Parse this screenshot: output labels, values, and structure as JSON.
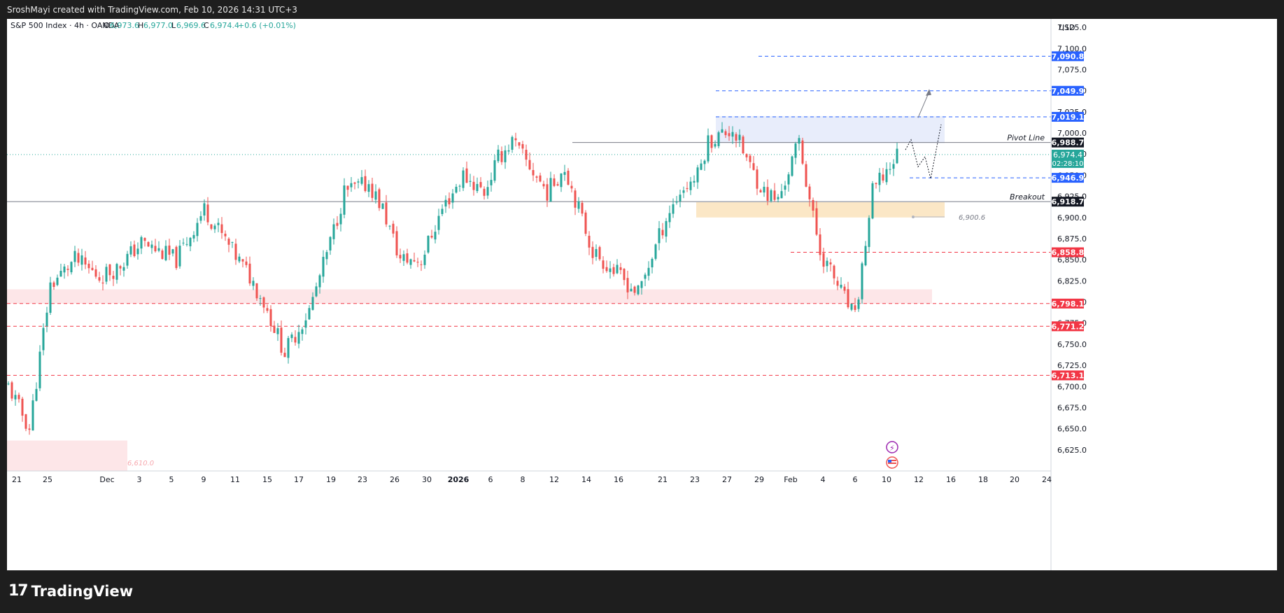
{
  "header": {
    "attribution": "SroshMayi created with TradingView.com, Feb 10, 2026 14:31 UTC+3"
  },
  "legend": {
    "symbol": "S&P 500 Index · 4h · OANDA",
    "open_label": "O",
    "open": "6,973.6",
    "high_label": "H",
    "high": "6,977.0",
    "low_label": "L",
    "low": "6,969.6",
    "close_label": "C",
    "close": "6,974.4",
    "change": "+0.6 (+0.01%)"
  },
  "footer": {
    "brand": "TradingView"
  },
  "colors": {
    "up": "#26a69a",
    "down": "#ef5350",
    "level_blue": "#2962ff",
    "level_red": "#f23645",
    "level_dark": "#131722",
    "zone_blue": "#e8edfb",
    "zone_orange": "#fbe7c6",
    "zone_red": "#fde6e8",
    "price_line": "#26a69a"
  },
  "chart_data": {
    "type": "candlestick",
    "timeframe": "4h",
    "currency": "USD",
    "ylim": [
      6600,
      7135
    ],
    "y_ticks": [
      "6,625.0",
      "6,650.0",
      "6,675.0",
      "6,700.0",
      "6,725.0",
      "6,750.0",
      "6,775.0",
      "6,800.0",
      "6,825.0",
      "6,850.0",
      "6,875.0",
      "6,900.0",
      "6,925.0",
      "6,950.0",
      "6,975.0",
      "7,000.0",
      "7,025.0",
      "7,050.0",
      "7,075.0",
      "7,100.0",
      "7,125.0"
    ],
    "x_ticks": [
      {
        "label": "21",
        "bold": false
      },
      {
        "label": "25",
        "bold": false
      },
      {
        "label": "Dec",
        "bold": false
      },
      {
        "label": "3",
        "bold": false
      },
      {
        "label": "5",
        "bold": false
      },
      {
        "label": "9",
        "bold": false
      },
      {
        "label": "11",
        "bold": false
      },
      {
        "label": "15",
        "bold": false
      },
      {
        "label": "17",
        "bold": false
      },
      {
        "label": "19",
        "bold": false
      },
      {
        "label": "23",
        "bold": false
      },
      {
        "label": "26",
        "bold": false
      },
      {
        "label": "30",
        "bold": false
      },
      {
        "label": "2026",
        "bold": true
      },
      {
        "label": "6",
        "bold": false
      },
      {
        "label": "8",
        "bold": false
      },
      {
        "label": "12",
        "bold": false
      },
      {
        "label": "14",
        "bold": false
      },
      {
        "label": "16",
        "bold": false
      },
      {
        "label": "21",
        "bold": false
      },
      {
        "label": "23",
        "bold": false
      },
      {
        "label": "27",
        "bold": false
      },
      {
        "label": "29",
        "bold": false
      },
      {
        "label": "Feb",
        "bold": false
      },
      {
        "label": "4",
        "bold": false
      },
      {
        "label": "6",
        "bold": false
      },
      {
        "label": "10",
        "bold": false
      },
      {
        "label": "12",
        "bold": false
      },
      {
        "label": "16",
        "bold": false
      },
      {
        "label": "18",
        "bold": false
      },
      {
        "label": "20",
        "bold": false
      },
      {
        "label": "24",
        "bold": false
      }
    ],
    "last_price": {
      "value": "6,974.4",
      "countdown": "02:28:10"
    },
    "levels": [
      {
        "value": "7,090.8",
        "style": "dashed",
        "badge": "blue"
      },
      {
        "value": "7,049.9",
        "style": "dashed",
        "badge": "blue"
      },
      {
        "value": "7,019.1",
        "style": "dashed",
        "badge": "blue"
      },
      {
        "value": "6,988.7",
        "style": "solid",
        "badge": "dark",
        "name": "Pivot Line"
      },
      {
        "value": "6,946.9",
        "style": "dashed",
        "badge": "blue"
      },
      {
        "value": "6,918.7",
        "style": "solid",
        "badge": "dark",
        "name": "Breakout"
      },
      {
        "value": "6,858.8",
        "style": "dashed",
        "badge": "red"
      },
      {
        "value": "6,798.1",
        "style": "dashed",
        "badge": "red"
      },
      {
        "value": "6,771.2",
        "style": "dashed",
        "badge": "red"
      },
      {
        "value": "6,713.1",
        "style": "dashed",
        "badge": "red"
      }
    ],
    "zones": [
      {
        "name": "supply",
        "from": 6988,
        "to": 7020,
        "color": "blue"
      },
      {
        "name": "breakout-zone",
        "from": 6900,
        "to": 6918,
        "color": "orange"
      },
      {
        "name": "demand",
        "from": 6798,
        "to": 6815,
        "color": "red"
      },
      {
        "name": "lower-demand",
        "from": 6600,
        "to": 6636,
        "color": "red"
      }
    ],
    "annotations": [
      {
        "text": "6,900.6",
        "value": 6900.6
      },
      {
        "text": "6,610.0",
        "value": 6610
      }
    ],
    "anchors": [
      {
        "label": "Nov 21",
        "value": 6700
      },
      {
        "label": "Nov 24",
        "value": 6650
      },
      {
        "label": "Nov 26",
        "value": 6820
      },
      {
        "label": "Nov 28",
        "value": 6850
      },
      {
        "label": "Dec 1",
        "value": 6830
      },
      {
        "label": "Dec 3",
        "value": 6840
      },
      {
        "label": "Dec 5",
        "value": 6870
      },
      {
        "label": "Dec 9",
        "value": 6850
      },
      {
        "label": "Dec 11",
        "value": 6910
      },
      {
        "label": "Dec 12",
        "value": 6860
      },
      {
        "label": "Dec 15",
        "value": 6830
      },
      {
        "label": "Dec 17",
        "value": 6800
      },
      {
        "label": "Dec 18",
        "value": 6740
      },
      {
        "label": "Dec 19",
        "value": 6790
      },
      {
        "label": "Dec 22",
        "value": 6870
      },
      {
        "label": "Dec 24",
        "value": 6930
      },
      {
        "label": "Dec 26",
        "value": 6940
      },
      {
        "label": "Dec 29",
        "value": 6910
      },
      {
        "label": "Dec 31",
        "value": 6850
      },
      {
        "label": "Jan 2",
        "value": 6850
      },
      {
        "label": "Jan 5",
        "value": 6910
      },
      {
        "label": "Jan 7",
        "value": 6950
      },
      {
        "label": "Jan 9",
        "value": 6930
      },
      {
        "label": "Jan 12",
        "value": 6970
      },
      {
        "label": "Jan 13",
        "value": 6990
      },
      {
        "label": "Jan 14",
        "value": 6960
      },
      {
        "label": "Jan 15",
        "value": 6930
      },
      {
        "label": "Jan 16",
        "value": 6960
      },
      {
        "label": "Jan 20",
        "value": 6860
      },
      {
        "label": "Jan 21",
        "value": 6810
      },
      {
        "label": "Jan 22",
        "value": 6900
      },
      {
        "label": "Jan 23",
        "value": 6930
      },
      {
        "label": "Jan 26",
        "value": 6950
      },
      {
        "label": "Jan 27",
        "value": 6990
      },
      {
        "label": "Jan 28",
        "value": 7005
      },
      {
        "label": "Jan 29",
        "value": 6960
      },
      {
        "label": "Jan 30",
        "value": 6930
      },
      {
        "label": "Feb 2",
        "value": 6920
      },
      {
        "label": "Feb 3",
        "value": 6990
      },
      {
        "label": "Feb 4",
        "value": 6900
      },
      {
        "label": "Feb 5",
        "value": 6860
      },
      {
        "label": "Feb 6",
        "value": 6780
      },
      {
        "label": "Feb 9",
        "value": 6930
      },
      {
        "label": "Feb 10",
        "value": 6974
      }
    ]
  }
}
